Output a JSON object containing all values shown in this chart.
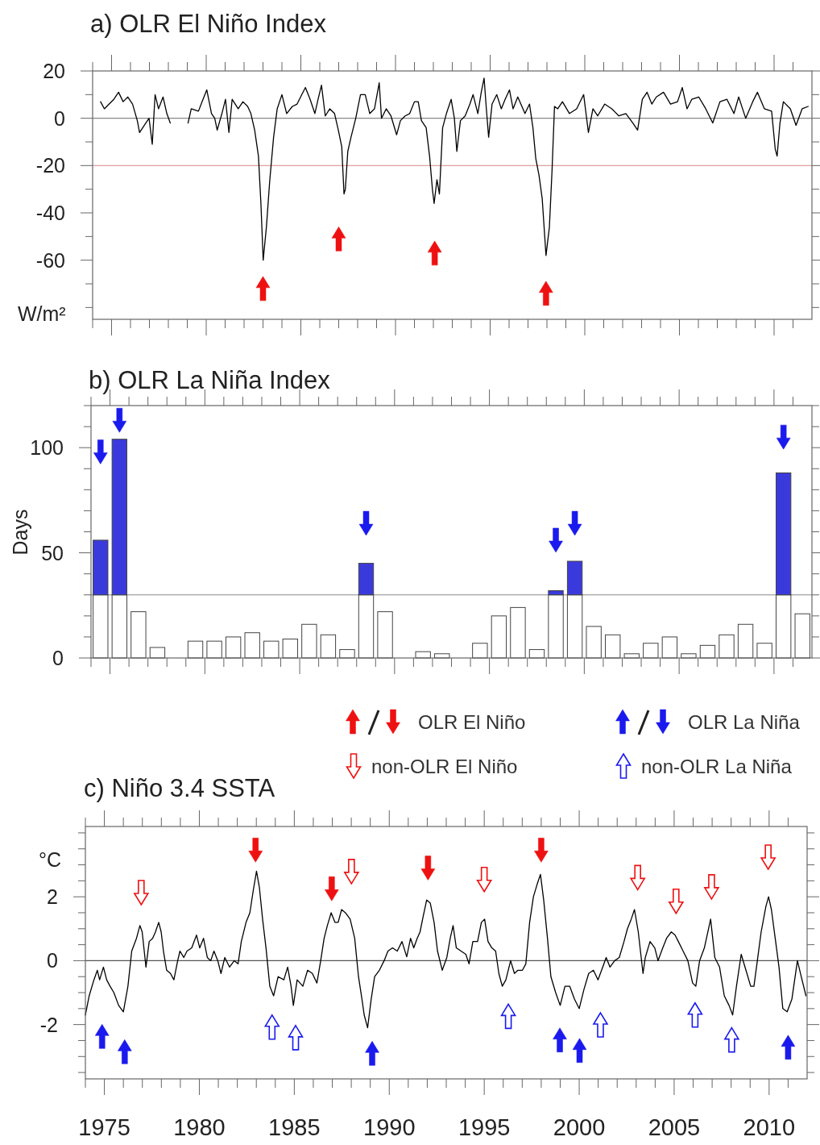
{
  "chart_data": [
    {
      "type": "line",
      "title": "a) OLR El Niño Index",
      "ylabel": "W/m²",
      "xlim": [
        1974,
        2012
      ],
      "ylim": [
        -85,
        20
      ],
      "tick_labels": "y",
      "xticks": [
        {
          "value": 1974,
          "label": null
        },
        1975,
        {
          "value": 1976,
          "label": null
        },
        {
          "value": 1977,
          "label": null
        },
        {
          "value": 1978,
          "label": null
        },
        {
          "value": 1979,
          "label": null
        },
        1980,
        {
          "value": 1981,
          "label": null
        },
        {
          "value": 1982,
          "label": null
        },
        {
          "value": 1983,
          "label": null
        },
        {
          "value": 1984,
          "label": null
        },
        1985,
        {
          "value": 1986,
          "label": null
        },
        {
          "value": 1987,
          "label": null
        },
        {
          "value": 1988,
          "label": null
        },
        {
          "value": 1989,
          "label": null
        },
        1990,
        {
          "value": 1991,
          "label": null
        },
        {
          "value": 1992,
          "label": null
        },
        {
          "value": 1993,
          "label": null
        },
        {
          "value": 1994,
          "label": null
        },
        1995,
        {
          "value": 1996,
          "label": null
        },
        {
          "value": 1997,
          "label": null
        },
        {
          "value": 1998,
          "label": null
        },
        {
          "value": 1999,
          "label": null
        },
        2000,
        {
          "value": 2001,
          "label": null
        },
        {
          "value": 2002,
          "label": null
        },
        {
          "value": 2003,
          "label": null
        },
        {
          "value": 2004,
          "label": null
        },
        2005,
        {
          "value": 2006,
          "label": null
        },
        {
          "value": 2007,
          "label": null
        },
        {
          "value": 2008,
          "label": null
        },
        {
          "value": 2009,
          "label": null
        },
        2010,
        {
          "value": 2011,
          "label": null
        }
      ],
      "yticks": [
        20,
        {
          "value": 10,
          "label": null
        },
        0,
        {
          "value": -10,
          "label": null
        },
        -20,
        {
          "value": -30,
          "label": null
        },
        -40,
        {
          "value": -50,
          "label": null
        },
        -60,
        {
          "value": -70,
          "label": null
        },
        {
          "value": -80,
          "label": null
        }
      ],
      "ref_lines": [
        {
          "axis": "y",
          "value": 0,
          "color": "#888888"
        },
        {
          "axis": "y",
          "value": -20,
          "color": "#e0a0a0"
        }
      ],
      "series": [
        {
          "color": "#000000",
          "x": [
            1974.42,
            1974.62,
            1974.87,
            1975.12,
            1975.37,
            1975.61,
            1975.86,
            1976.11,
            1976.36,
            1976.48,
            1976.73,
            1976.98,
            1977.15,
            1977.3,
            1977.48,
            1977.72,
            1977.92,
            1978.1,
            1978.5,
            1979.04,
            1979.21,
            1979.59,
            1979.83,
            1980.03,
            1980.28,
            1980.45,
            1980.58,
            1980.83,
            1981.02,
            1981.2,
            1981.37,
            1981.69,
            1981.94,
            1982.19,
            1982.36,
            1982.56,
            1982.76,
            1982.89,
            1983.01,
            1983.18,
            1983.36,
            1983.56,
            1983.75,
            1984.0,
            1984.25,
            1984.55,
            1984.8,
            1985.05,
            1985.24,
            1985.49,
            1985.74,
            1985.91,
            1986.09,
            1986.29,
            1986.53,
            1986.78,
            1986.98,
            1987.16,
            1987.28,
            1987.35,
            1987.48,
            1987.65,
            1987.9,
            1988.15,
            1988.4,
            1988.64,
            1988.89,
            1989.14,
            1989.26,
            1989.51,
            1989.76,
            1990.06,
            1990.26,
            1990.51,
            1990.75,
            1991.0,
            1991.2,
            1991.37,
            1991.62,
            1991.8,
            1991.95,
            1992.04,
            1992.19,
            1992.32,
            1992.49,
            1992.69,
            1992.94,
            1993.11,
            1993.24,
            1993.43,
            1993.68,
            1993.93,
            1994.1,
            1994.35,
            1994.53,
            1994.68,
            1994.8,
            1994.92,
            1995.1,
            1995.35,
            1995.59,
            1995.79,
            1996.02,
            1996.21,
            1996.46,
            1996.84,
            1997.08,
            1997.26,
            1997.41,
            1997.58,
            1997.75,
            1997.95,
            1998.13,
            1998.27,
            1998.4,
            1998.57,
            1998.82,
            1999.19,
            1999.57,
            1999.94,
            2000.19,
            2000.43,
            2000.68,
            2001.05,
            2001.43,
            2001.8,
            2002.17,
            2002.54,
            2002.79,
            2003.04,
            2003.29,
            2003.54,
            2003.78,
            2004.16,
            2004.53,
            2004.9,
            2005.15,
            2005.4,
            2005.65,
            2006.02,
            2006.39,
            2006.76,
            2007.14,
            2007.51,
            2007.88,
            2008.13,
            2008.5,
            2008.87,
            2009.12,
            2009.49,
            2009.87,
            2010.06,
            2010.16,
            2010.31,
            2010.49,
            2010.86,
            2011.16,
            2011.48,
            2011.8
          ],
          "values": [
            7,
            4,
            6,
            8,
            11,
            7,
            9,
            6,
            -1,
            -6,
            -3,
            0,
            -11,
            10,
            4,
            9,
            2,
            -2,
            null,
            -2,
            4,
            3,
            8,
            12,
            2,
            0,
            -5,
            2,
            8,
            -6,
            8,
            4,
            7,
            5,
            2,
            -5,
            -16,
            -36,
            -60,
            -46,
            -26,
            -8,
            4,
            10,
            2,
            5,
            6,
            10,
            13,
            8,
            2,
            8,
            14,
            1,
            4,
            2,
            -5,
            -12,
            -32,
            -30,
            -14,
            -8,
            0,
            10,
            10,
            2,
            4,
            15,
            0,
            4,
            1,
            -7,
            -1,
            1,
            2,
            7,
            7,
            -1,
            -4,
            -16,
            -30,
            -36,
            -26,
            -32,
            -4,
            2,
            8,
            0,
            -14,
            -1,
            1,
            6,
            10,
            2,
            11,
            17,
            4,
            -8,
            6,
            10,
            4,
            8,
            12,
            4,
            9,
            2,
            6,
            -4,
            -17,
            -24,
            -34,
            -58,
            -46,
            -22,
            5,
            4,
            7,
            2,
            4,
            10,
            -6,
            4,
            1,
            6,
            4,
            1,
            2,
            -2,
            -5,
            8,
            11,
            6,
            9,
            11,
            6,
            7,
            13,
            4,
            8,
            9,
            4,
            -2,
            7,
            8,
            2,
            9,
            0,
            7,
            11,
            4,
            3,
            -13,
            -16,
            -2,
            7,
            4,
            -3,
            4,
            5
          ]
        },
        {
          "type": "scatter",
          "color": "#ee1111",
          "x": [
            1983.0,
            1987.0,
            1992.07,
            1997.95
          ],
          "values": [
            -72,
            -51,
            -57,
            -74
          ]
        }
      ]
    },
    {
      "type": "bar",
      "title": "b) OLR La Niña Index",
      "ylabel": "Days",
      "xlim": [
        1974,
        2012
      ],
      "ylim": [
        0,
        120
      ],
      "tick_labels": "y",
      "stacked": true,
      "xticks": [
        {
          "value": 1974,
          "label": null
        },
        1975,
        {
          "value": 1976,
          "label": null
        },
        {
          "value": 1977,
          "label": null
        },
        {
          "value": 1978,
          "label": null
        },
        {
          "value": 1979,
          "label": null
        },
        1980,
        {
          "value": 1981,
          "label": null
        },
        {
          "value": 1982,
          "label": null
        },
        {
          "value": 1983,
          "label": null
        },
        {
          "value": 1984,
          "label": null
        },
        1985,
        {
          "value": 1986,
          "label": null
        },
        {
          "value": 1987,
          "label": null
        },
        {
          "value": 1988,
          "label": null
        },
        {
          "value": 1989,
          "label": null
        },
        1990,
        {
          "value": 1991,
          "label": null
        },
        {
          "value": 1992,
          "label": null
        },
        {
          "value": 1993,
          "label": null
        },
        {
          "value": 1994,
          "label": null
        },
        1995,
        {
          "value": 1996,
          "label": null
        },
        {
          "value": 1997,
          "label": null
        },
        {
          "value": 1998,
          "label": null
        },
        {
          "value": 1999,
          "label": null
        },
        2000,
        {
          "value": 2001,
          "label": null
        },
        {
          "value": 2002,
          "label": null
        },
        {
          "value": 2003,
          "label": null
        },
        {
          "value": 2004,
          "label": null
        },
        2005,
        {
          "value": 2006,
          "label": null
        },
        {
          "value": 2007,
          "label": null
        },
        {
          "value": 2008,
          "label": null
        },
        {
          "value": 2009,
          "label": null
        },
        2010,
        {
          "value": 2011,
          "label": null
        }
      ],
      "yticks": [
        0,
        {
          "value": 10,
          "label": null
        },
        {
          "value": 20,
          "label": null
        },
        {
          "value": 30,
          "label": null
        },
        {
          "value": 40,
          "label": null
        },
        50,
        {
          "value": 60,
          "label": null
        },
        {
          "value": 70,
          "label": null
        },
        {
          "value": 80,
          "label": null
        },
        {
          "value": 90,
          "label": null
        },
        100,
        {
          "value": 110,
          "label": null
        },
        {
          "value": 120,
          "label": null
        }
      ],
      "ref_lines": [
        {
          "axis": "y",
          "value": 30,
          "color": "#888888"
        }
      ],
      "x": [
        1974.5,
        1975.5,
        1976.5,
        1977.5,
        1978.5,
        1979.5,
        1980.5,
        1981.5,
        1982.5,
        1983.5,
        1984.5,
        1985.5,
        1986.5,
        1987.5,
        1988.5,
        1989.5,
        1990.5,
        1991.5,
        1992.5,
        1993.5,
        1994.5,
        1995.5,
        1996.5,
        1997.5,
        1998.5,
        1999.5,
        2000.5,
        2001.5,
        2002.5,
        2003.5,
        2004.5,
        2005.5,
        2006.5,
        2007.5,
        2008.5,
        2009.5,
        2010.5,
        2011.5
      ],
      "series": [
        {
          "color": "#ffffff",
          "values": [
            30,
            30,
            22,
            5,
            null,
            8,
            8,
            10,
            12,
            8,
            9,
            16,
            11,
            4,
            30,
            22,
            0,
            3,
            2,
            0,
            7,
            20,
            24,
            4,
            30,
            30,
            15,
            11,
            2,
            7,
            10,
            2,
            6,
            11,
            16,
            7,
            30,
            21
          ]
        },
        {
          "color": "#3a3adc",
          "values": [
            26,
            74,
            null,
            null,
            null,
            null,
            null,
            null,
            null,
            null,
            null,
            null,
            null,
            null,
            15,
            null,
            null,
            null,
            null,
            null,
            null,
            null,
            null,
            null,
            2,
            16,
            null,
            null,
            null,
            null,
            null,
            null,
            null,
            null,
            null,
            null,
            58,
            null
          ]
        },
        {
          "type": "scatter",
          "color": "#1a1aee",
          "x": [
            1974.5,
            1975.5,
            1988.5,
            1998.5,
            1999.5,
            2010.5
          ],
          "values": [
            98,
            113,
            64,
            56,
            64,
            105
          ]
        }
      ]
    },
    {
      "type": "line",
      "title": "c) Niño 3.4 SSTA",
      "ylabel": "°C",
      "xlim": [
        1974,
        2012
      ],
      "ylim": [
        -3.7,
        4.2
      ],
      "legend": "top",
      "xticks": [
        {
          "value": 1974,
          "label": null
        },
        1975,
        {
          "value": 1976,
          "label": null
        },
        {
          "value": 1977,
          "label": null
        },
        {
          "value": 1978,
          "label": null
        },
        {
          "value": 1979,
          "label": null
        },
        1980,
        {
          "value": 1981,
          "label": null
        },
        {
          "value": 1982,
          "label": null
        },
        {
          "value": 1983,
          "label": null
        },
        {
          "value": 1984,
          "label": null
        },
        1985,
        {
          "value": 1986,
          "label": null
        },
        {
          "value": 1987,
          "label": null
        },
        {
          "value": 1988,
          "label": null
        },
        {
          "value": 1989,
          "label": null
        },
        1990,
        {
          "value": 1991,
          "label": null
        },
        {
          "value": 1992,
          "label": null
        },
        {
          "value": 1993,
          "label": null
        },
        {
          "value": 1994,
          "label": null
        },
        1995,
        {
          "value": 1996,
          "label": null
        },
        {
          "value": 1997,
          "label": null
        },
        {
          "value": 1998,
          "label": null
        },
        {
          "value": 1999,
          "label": null
        },
        2000,
        {
          "value": 2001,
          "label": null
        },
        {
          "value": 2002,
          "label": null
        },
        {
          "value": 2003,
          "label": null
        },
        {
          "value": 2004,
          "label": null
        },
        2005,
        {
          "value": 2006,
          "label": null
        },
        {
          "value": 2007,
          "label": null
        },
        {
          "value": 2008,
          "label": null
        },
        {
          "value": 2009,
          "label": null
        },
        2010,
        {
          "value": 2011,
          "label": null
        }
      ],
      "yticks": [
        {
          "value": -3.5,
          "label": null
        },
        {
          "value": -3,
          "label": null
        },
        {
          "value": -2.5,
          "label": null
        },
        -2,
        {
          "value": -1.5,
          "label": null
        },
        {
          "value": -1,
          "label": null
        },
        {
          "value": -0.5,
          "label": null
        },
        0,
        {
          "value": 0.5,
          "label": null
        },
        {
          "value": 1,
          "label": null
        },
        {
          "value": 1.5,
          "label": null
        },
        2,
        {
          "value": 2.5,
          "label": null
        },
        {
          "value": 3,
          "label": null
        },
        {
          "value": 3.5,
          "label": null
        },
        {
          "value": 4,
          "label": null
        }
      ],
      "ref_lines": [
        {
          "axis": "y",
          "value": 0,
          "color": "#555555"
        }
      ],
      "series": [
        {
          "color": "#000000",
          "x": [
            1974.0,
            1974.2,
            1974.45,
            1974.63,
            1974.75,
            1974.95,
            1975.12,
            1975.3,
            1975.5,
            1975.75,
            1976.0,
            1976.24,
            1976.44,
            1976.69,
            1976.87,
            1976.99,
            1977.19,
            1977.36,
            1977.54,
            1977.69,
            1977.86,
            1977.99,
            1978.11,
            1978.28,
            1978.48,
            1978.66,
            1978.86,
            1978.98,
            1979.18,
            1979.35,
            1979.6,
            1979.85,
            1980.02,
            1980.22,
            1980.42,
            1980.6,
            1980.77,
            1980.97,
            1981.14,
            1981.34,
            1981.59,
            1981.84,
            1982.04,
            1982.21,
            1982.46,
            1982.66,
            1982.84,
            1983.01,
            1983.16,
            1983.33,
            1983.51,
            1983.71,
            1983.91,
            1984.15,
            1984.45,
            1984.65,
            1984.83,
            1984.95,
            1985.15,
            1985.45,
            1985.7,
            1985.95,
            1986.19,
            1986.39,
            1986.57,
            1986.74,
            1986.94,
            1987.14,
            1987.31,
            1987.49,
            1987.69,
            1987.94,
            1988.18,
            1988.38,
            1988.56,
            1988.68,
            1988.86,
            1989.05,
            1989.23,
            1989.48,
            1989.73,
            1989.93,
            1990.17,
            1990.42,
            1990.67,
            1990.92,
            1991.12,
            1991.29,
            1991.47,
            1991.62,
            1991.79,
            1991.97,
            1992.16,
            1992.36,
            1992.54,
            1992.79,
            1993.03,
            1993.21,
            1993.36,
            1993.53,
            1993.78,
            1994.03,
            1994.2,
            1994.4,
            1994.65,
            1994.85,
            1995.02,
            1995.2,
            1995.4,
            1995.6,
            1995.77,
            1995.95,
            1996.14,
            1996.39,
            1996.59,
            1996.77,
            1997.01,
            1997.19,
            1997.39,
            1997.59,
            1997.79,
            1997.96,
            1998.13,
            1998.33,
            1998.51,
            1998.76,
            1999.0,
            1999.25,
            1999.5,
            1999.75,
            2000.0,
            2000.25,
            2000.5,
            2000.75,
            2000.99,
            2001.24,
            2001.42,
            2001.62,
            2001.87,
            2002.11,
            2002.36,
            2002.54,
            2002.74,
            2002.91,
            2003.11,
            2003.36,
            2003.48,
            2003.73,
            2003.98,
            2004.15,
            2004.4,
            2004.6,
            2004.85,
            2005.05,
            2005.22,
            2005.47,
            2005.72,
            2005.97,
            2006.14,
            2006.34,
            2006.59,
            2006.92,
            2007.14,
            2007.39,
            2007.64,
            2007.89,
            2008.08,
            2008.28,
            2008.53,
            2008.78,
            2009.03,
            2009.2,
            2009.38,
            2009.58,
            2009.83,
            2009.97,
            2010.12,
            2010.32,
            2010.52,
            2010.72,
            2010.95,
            2011.2,
            2011.49,
            2011.69,
            2011.94
          ],
          "values": [
            -1.7,
            -1.1,
            -0.6,
            -0.3,
            -0.6,
            -0.2,
            -0.6,
            -0.8,
            -1.0,
            -1.4,
            -1.6,
            -0.8,
            0.3,
            0.7,
            1.1,
            0.9,
            -0.2,
            0.6,
            0.7,
            0.9,
            1.2,
            0.9,
            0.3,
            -0.3,
            -0.4,
            -0.6,
            0.0,
            0.3,
            0.1,
            0.3,
            0.4,
            0.8,
            0.4,
            0.7,
            0.1,
            0.0,
            0.3,
            0.0,
            -0.4,
            0.1,
            -0.2,
            0.0,
            -0.1,
            0.6,
            1.2,
            1.5,
            2.2,
            2.8,
            2.3,
            1.3,
            0.4,
            -0.8,
            -1.1,
            -0.5,
            -0.6,
            -0.2,
            -0.8,
            -1.4,
            -0.6,
            -0.8,
            -0.3,
            -0.4,
            -0.7,
            0.0,
            0.7,
            1.1,
            1.5,
            1.2,
            1.2,
            1.6,
            1.5,
            1.3,
            0.7,
            -0.5,
            -1.2,
            -1.7,
            -2.1,
            -1.2,
            -0.5,
            -0.3,
            0.0,
            0.3,
            0.4,
            0.3,
            0.6,
            0.12,
            0.7,
            0.4,
            0.7,
            0.9,
            1.4,
            1.9,
            1.8,
            1.2,
            0.3,
            -0.3,
            0.1,
            0.7,
            1.1,
            0.4,
            0.3,
            0.2,
            -0.1,
            0.6,
            0.6,
            1.2,
            1.3,
            0.6,
            0.4,
            0.3,
            -0.4,
            -0.8,
            -0.6,
            0.0,
            -0.4,
            -0.3,
            -0.3,
            -0.1,
            1.2,
            2.0,
            2.4,
            2.7,
            1.9,
            0.7,
            -0.5,
            -1.0,
            -1.4,
            -0.8,
            -0.8,
            -1.2,
            -1.5,
            -0.9,
            -0.4,
            -0.3,
            -0.6,
            -0.2,
            0.1,
            -0.2,
            0.0,
            0.1,
            0.6,
            1.0,
            1.3,
            1.6,
            0.9,
            -0.4,
            0.1,
            0.6,
            0.4,
            0.0,
            0.4,
            0.7,
            0.9,
            0.8,
            0.6,
            0.3,
            0.0,
            -0.7,
            -0.8,
            0.0,
            0.4,
            1.3,
            0.1,
            -0.2,
            -1.1,
            -1.4,
            -1.7,
            -0.8,
            0.2,
            -0.3,
            -0.8,
            -0.8,
            0.0,
            0.9,
            1.7,
            2.0,
            1.6,
            0.7,
            -0.2,
            -1.5,
            -1.6,
            -1.2,
            0.0,
            -0.5,
            -1.1
          ]
        },
        {
          "type": "scatter",
          "name": "OLR El Niño",
          "color": "#ee1111",
          "x": [
            1982.96,
            1986.97,
            1992.04,
            1998.0
          ],
          "values": [
            3.46,
            2.25,
            2.9,
            3.46
          ]
        },
        {
          "type": "scatter",
          "name": "non-OLR El Niño",
          "color": "#ee1111",
          "x": [
            1976.94,
            1988.01,
            1995.0,
            2003.08,
            2005.1,
            2006.97,
            2009.95
          ],
          "values": [
            2.13,
            2.79,
            2.54,
            2.6,
            1.86,
            2.31,
            3.24
          ]
        },
        {
          "type": "scatter",
          "name": "OLR La Niña",
          "color": "#1a1aee",
          "x": [
            1974.88,
            1976.07,
            1989.1,
            1998.98,
            2000.02,
            2011.0
          ],
          "values": [
            -2.37,
            -2.85,
            -2.9,
            -2.48,
            -2.81,
            -2.71
          ]
        },
        {
          "type": "scatter",
          "name": "non-OLR La Niña",
          "color": "#1a1aee",
          "x": [
            1983.83,
            1985.07,
            1996.27,
            2001.12,
            2006.1,
            2008.03
          ],
          "values": [
            -2.08,
            -2.41,
            -1.74,
            -2.01,
            -1.7,
            -2.48
          ]
        }
      ]
    }
  ]
}
